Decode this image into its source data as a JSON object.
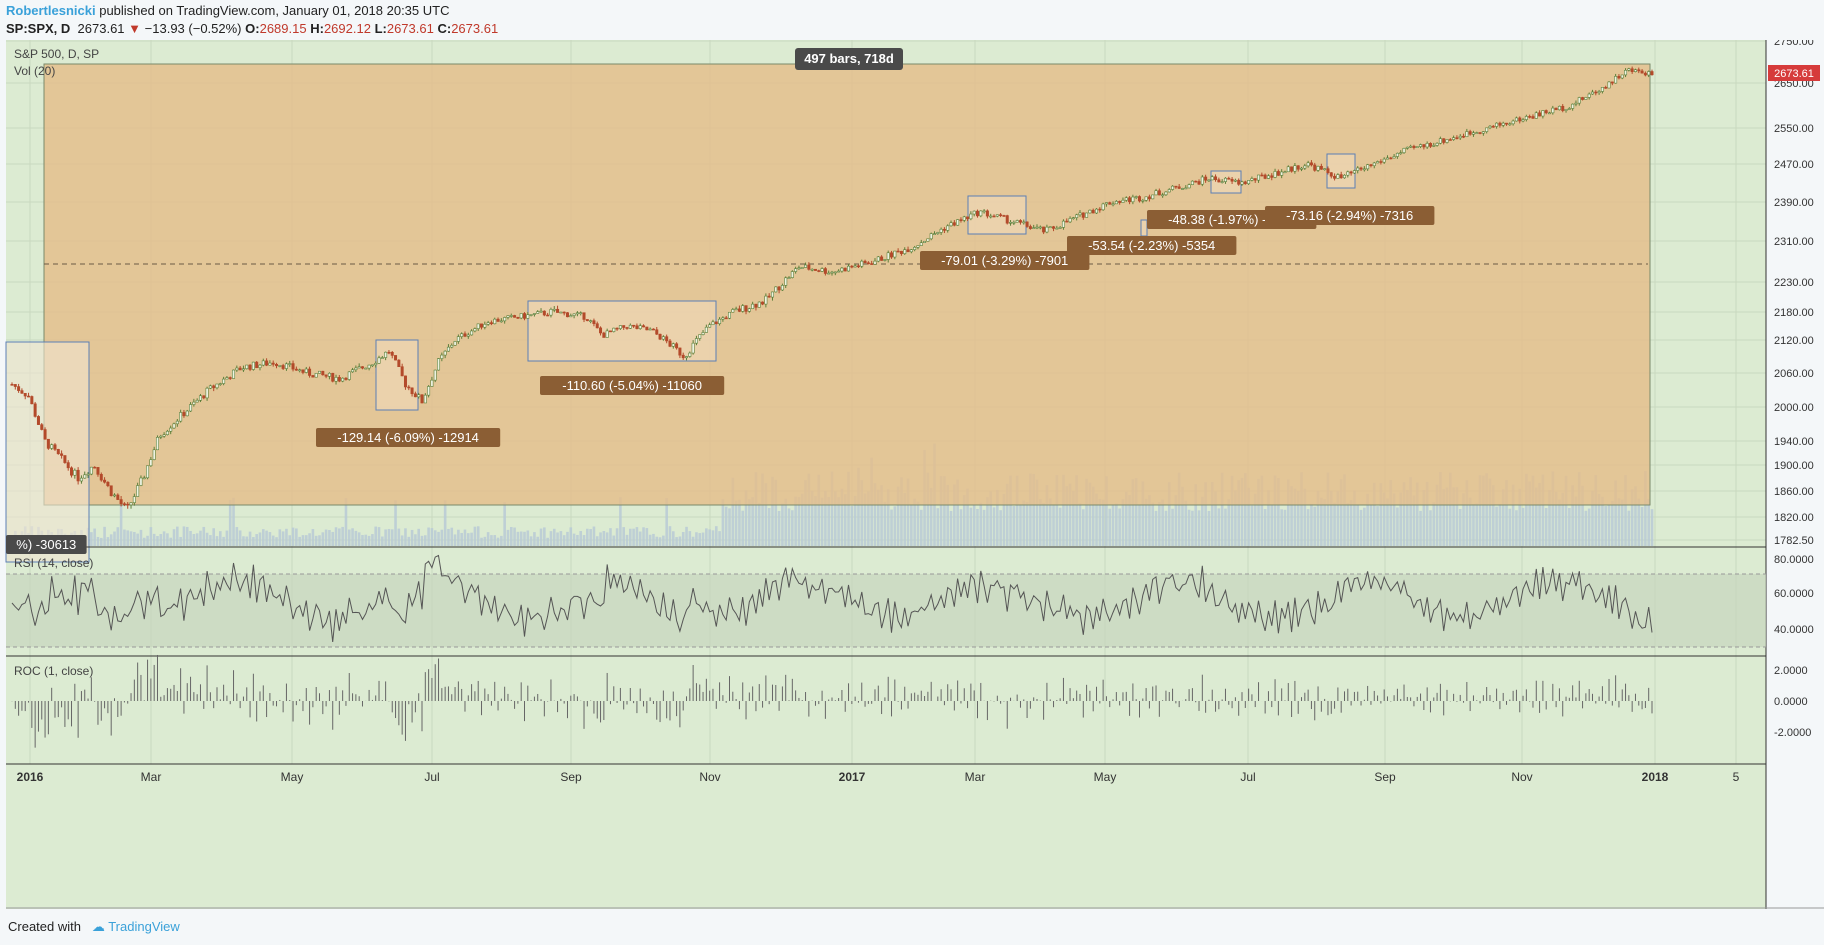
{
  "header": {
    "author": "Robertlesnicki",
    "published": "published on TradingView.com, January 01, 2018 20:35 UTC"
  },
  "symbol_bar": {
    "symbol": "SP:SPX, D",
    "price": "2673.61",
    "arrow": "▼",
    "change": "−13.93 (−0.52%)",
    "open_label": "O:",
    "open": "2689.15",
    "high_label": "H:",
    "high": "2692.12",
    "low_label": "L:",
    "low": "2673.61",
    "close_label": "C:",
    "close": "2673.61"
  },
  "legend": {
    "main": "S&P 500, D, SP",
    "vol": "Vol (20)",
    "rsi": "RSI (14, close)",
    "roc": "ROC (1, close)"
  },
  "footer": {
    "created": "Created with",
    "brand": "TradingView"
  },
  "colors": {
    "panel_bg": "#dcebd2",
    "range_fill": "#e4bd8a",
    "label_bg": "#8b5e34",
    "price_tag": "#d63b3b",
    "up": "#5c7f3a",
    "down": "#b34a2b"
  },
  "chart_data": {
    "type": "candlestick",
    "symbol": "S&P 500, D, SP",
    "last_price": "2673.61",
    "price_axis_ticks": [
      "2750.00",
      "2650.00",
      "2550.00",
      "2470.00",
      "2390.00",
      "2310.00",
      "2230.00",
      "2180.00",
      "2120.00",
      "2060.00",
      "2000.00",
      "1940.00",
      "1900.00",
      "1860.00",
      "1820.00",
      "1782.50"
    ],
    "rsi_ticks": [
      "80.0000",
      "60.0000",
      "40.0000"
    ],
    "roc_ticks": [
      "2.0000",
      "0.0000",
      "-2.0000"
    ],
    "time_axis": [
      {
        "label": "2016",
        "bold": true
      },
      {
        "label": "Mar"
      },
      {
        "label": "May"
      },
      {
        "label": "Jul"
      },
      {
        "label": "Sep"
      },
      {
        "label": "Nov"
      },
      {
        "label": "2017",
        "bold": true
      },
      {
        "label": "Mar"
      },
      {
        "label": "May"
      },
      {
        "label": "Jul"
      },
      {
        "label": "Sep"
      },
      {
        "label": "Nov"
      },
      {
        "label": "2018",
        "bold": true
      },
      {
        "label": "5"
      }
    ],
    "range_label": "497 bars, 718d",
    "drawdown_labels": [
      "%) -30613",
      "-129.14 (-6.09%) -12914",
      "-110.60 (-5.04%) -11060",
      "-79.01 (-3.29%) -7901",
      "-53.54 (-2.23%) -5354",
      "-48.38 (-1.97%) -4838",
      "-73.16 (-2.94%) -7316"
    ],
    "price_path": [
      [
        2016.0,
        2040
      ],
      [
        2016.02,
        2020
      ],
      [
        2016.04,
        1940
      ],
      [
        2016.06,
        1910
      ],
      [
        2016.08,
        1880
      ],
      [
        2016.1,
        1900
      ],
      [
        2016.12,
        1860
      ],
      [
        2016.14,
        1830
      ],
      [
        2016.16,
        1880
      ],
      [
        2016.18,
        1950
      ],
      [
        2016.21,
        1990
      ],
      [
        2016.24,
        2030
      ],
      [
        2016.28,
        2070
      ],
      [
        2016.32,
        2080
      ],
      [
        2016.36,
        2060
      ],
      [
        2016.4,
        2050
      ],
      [
        2016.44,
        2080
      ],
      [
        2016.46,
        2100
      ],
      [
        2016.48,
        2040
      ],
      [
        2016.5,
        2010
      ],
      [
        2016.52,
        2080
      ],
      [
        2016.54,
        2120
      ],
      [
        2016.58,
        2160
      ],
      [
        2016.62,
        2170
      ],
      [
        2016.66,
        2180
      ],
      [
        2016.7,
        2170
      ],
      [
        2016.72,
        2130
      ],
      [
        2016.75,
        2150
      ],
      [
        2016.78,
        2140
      ],
      [
        2016.82,
        2090
      ],
      [
        2016.85,
        2150
      ],
      [
        2016.88,
        2180
      ],
      [
        2016.92,
        2200
      ],
      [
        2016.96,
        2260
      ],
      [
        2017.0,
        2250
      ],
      [
        2017.05,
        2270
      ],
      [
        2017.1,
        2300
      ],
      [
        2017.14,
        2340
      ],
      [
        2017.18,
        2370
      ],
      [
        2017.22,
        2350
      ],
      [
        2017.26,
        2330
      ],
      [
        2017.3,
        2360
      ],
      [
        2017.34,
        2390
      ],
      [
        2017.38,
        2400
      ],
      [
        2017.42,
        2420
      ],
      [
        2017.46,
        2440
      ],
      [
        2017.5,
        2430
      ],
      [
        2017.54,
        2450
      ],
      [
        2017.58,
        2470
      ],
      [
        2017.62,
        2440
      ],
      [
        2017.66,
        2470
      ],
      [
        2017.7,
        2500
      ],
      [
        2017.74,
        2520
      ],
      [
        2017.78,
        2540
      ],
      [
        2017.82,
        2560
      ],
      [
        2017.86,
        2580
      ],
      [
        2017.9,
        2600
      ],
      [
        2017.94,
        2640
      ],
      [
        2017.97,
        2680
      ],
      [
        2018.0,
        2673.61
      ]
    ]
  }
}
